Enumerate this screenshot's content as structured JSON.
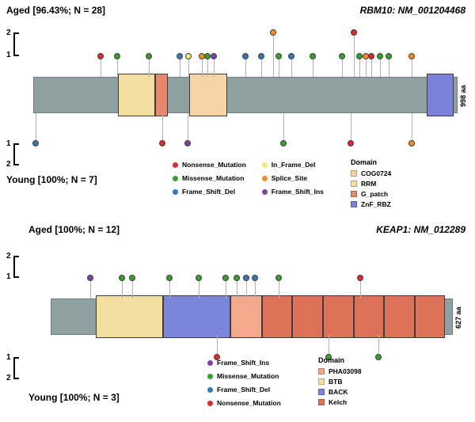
{
  "chart_data": [
    {
      "type": "lollipop",
      "gene_title": "RBM10: NM_001204468",
      "top_label": "Aged [96.43%; N = 28]",
      "bottom_label": "Young [100%; N = 7]",
      "protein_length_label": "998 aa",
      "axis_ticks_top": [
        "2",
        "1"
      ],
      "axis_ticks_bottom": [
        "1",
        "2"
      ],
      "bar_color": "#8FA0A0",
      "domain_colors": {
        "COG0724": "#F7D4A6",
        "RRM": "#F2DFA0",
        "G_patch": "#E8876B",
        "ZnF_RBZ": "#7B80D8"
      },
      "domains": [
        {
          "name": "RRM",
          "start": 0.2,
          "end": 0.287
        },
        {
          "name": "G_patch",
          "start": 0.287,
          "end": 0.317
        },
        {
          "name": "COG0724",
          "start": 0.368,
          "end": 0.458
        },
        {
          "name": "ZnF_RBZ",
          "start": 0.928,
          "end": 0.99
        }
      ],
      "mutation_colors": {
        "Nonsense_Mutation": "#DF2A2A",
        "Missense_Mutation": "#37A12E",
        "Frame_Shift_Del": "#3878B8",
        "In_Frame_Del": "#EFEF70",
        "Splice_Site": "#F58C22",
        "Frame_Shift_Ins": "#7A44A8"
      },
      "mutations_top": [
        {
          "pos": 0.159,
          "type": "Nonsense_Mutation",
          "count": 1
        },
        {
          "pos": 0.198,
          "type": "Missense_Mutation",
          "count": 1
        },
        {
          "pos": 0.272,
          "type": "Missense_Mutation",
          "count": 1
        },
        {
          "pos": 0.345,
          "type": "Frame_Shift_Del",
          "count": 1
        },
        {
          "pos": 0.366,
          "type": "In_Frame_Del",
          "count": 1
        },
        {
          "pos": 0.397,
          "type": "Splice_Site",
          "count": 1
        },
        {
          "pos": 0.41,
          "type": "Missense_Mutation",
          "count": 1
        },
        {
          "pos": 0.425,
          "type": "Frame_Shift_Ins",
          "count": 1
        },
        {
          "pos": 0.5,
          "type": "Frame_Shift_Del",
          "count": 1
        },
        {
          "pos": 0.537,
          "type": "Frame_Shift_Del",
          "count": 1
        },
        {
          "pos": 0.565,
          "type": "Splice_Site",
          "count": 2
        },
        {
          "pos": 0.578,
          "type": "Missense_Mutation",
          "count": 1
        },
        {
          "pos": 0.608,
          "type": "Frame_Shift_Del",
          "count": 1
        },
        {
          "pos": 0.659,
          "type": "Missense_Mutation",
          "count": 1
        },
        {
          "pos": 0.728,
          "type": "Missense_Mutation",
          "count": 1
        },
        {
          "pos": 0.756,
          "type": "Nonsense_Mutation",
          "count": 2
        },
        {
          "pos": 0.768,
          "type": "Missense_Mutation",
          "count": 1
        },
        {
          "pos": 0.784,
          "type": "Splice_Site",
          "count": 1
        },
        {
          "pos": 0.796,
          "type": "Nonsense_Mutation",
          "count": 1
        },
        {
          "pos": 0.817,
          "type": "Missense_Mutation",
          "count": 1
        },
        {
          "pos": 0.838,
          "type": "Missense_Mutation",
          "count": 1
        },
        {
          "pos": 0.892,
          "type": "Splice_Site",
          "count": 1
        }
      ],
      "mutations_bottom": [
        {
          "pos": 0.006,
          "type": "Frame_Shift_Del",
          "count": 1
        },
        {
          "pos": 0.304,
          "type": "Nonsense_Mutation",
          "count": 1
        },
        {
          "pos": 0.364,
          "type": "Frame_Shift_Ins",
          "count": 1
        },
        {
          "pos": 0.59,
          "type": "Missense_Mutation",
          "count": 1
        },
        {
          "pos": 0.748,
          "type": "Nonsense_Mutation",
          "count": 1
        },
        {
          "pos": 0.892,
          "type": "Splice_Site",
          "count": 1
        }
      ],
      "mutation_legend_columns": [
        [
          "Nonsense_Mutation",
          "Missense_Mutation",
          "Frame_Shift_Del"
        ],
        [
          "In_Frame_Del",
          "Splice_Site",
          "Frame_Shift_Ins"
        ]
      ],
      "domain_legend_title": "Domain",
      "domain_legend": [
        "COG0724",
        "RRM",
        "G_patch",
        "ZnF_RBZ"
      ]
    },
    {
      "type": "lollipop",
      "gene_title": "KEAP1: NM_012289",
      "top_label": "Aged [100%; N = 12]",
      "bottom_label": "Young [100%; N = 3]",
      "protein_length_label": "627 aa",
      "axis_ticks_top": [
        "2",
        "1"
      ],
      "axis_ticks_bottom": [
        "1",
        "2"
      ],
      "bar_color": "#8FA0A0",
      "domain_colors": {
        "PHA03098": "#F4A98C",
        "BTB": "#F2DFA0",
        "BACK": "#7B86DB",
        "Kelch": "#DC7358"
      },
      "domains": [
        {
          "name": "BTB",
          "start": 0.112,
          "end": 0.28
        },
        {
          "name": "BACK",
          "start": 0.28,
          "end": 0.446
        },
        {
          "name": "PHA03098",
          "start": 0.446,
          "end": 0.525
        },
        {
          "name": "Kelch",
          "start": 0.525,
          "end": 0.601
        },
        {
          "name": "Kelch",
          "start": 0.601,
          "end": 0.677
        },
        {
          "name": "Kelch",
          "start": 0.677,
          "end": 0.753
        },
        {
          "name": "Kelch",
          "start": 0.753,
          "end": 0.829
        },
        {
          "name": "Kelch",
          "start": 0.829,
          "end": 0.905
        },
        {
          "name": "Kelch",
          "start": 0.905,
          "end": 0.98
        }
      ],
      "mutation_colors": {
        "Frame_Shift_Ins": "#7A44A8",
        "Missense_Mutation": "#37A12E",
        "Frame_Shift_Del": "#3878B8",
        "Nonsense_Mutation": "#DF2A2A"
      },
      "mutations_top": [
        {
          "pos": 0.099,
          "type": "Frame_Shift_Ins",
          "count": 1
        },
        {
          "pos": 0.178,
          "type": "Missense_Mutation",
          "count": 1
        },
        {
          "pos": 0.203,
          "type": "Missense_Mutation",
          "count": 1
        },
        {
          "pos": 0.296,
          "type": "Missense_Mutation",
          "count": 1
        },
        {
          "pos": 0.369,
          "type": "Missense_Mutation",
          "count": 1
        },
        {
          "pos": 0.436,
          "type": "Missense_Mutation",
          "count": 1
        },
        {
          "pos": 0.463,
          "type": "Missense_Mutation",
          "count": 1
        },
        {
          "pos": 0.487,
          "type": "Frame_Shift_Del",
          "count": 1
        },
        {
          "pos": 0.507,
          "type": "Frame_Shift_Del",
          "count": 1
        },
        {
          "pos": 0.566,
          "type": "Missense_Mutation",
          "count": 1
        },
        {
          "pos": 0.77,
          "type": "Nonsense_Mutation",
          "count": 1
        }
      ],
      "mutations_bottom": [
        {
          "pos": 0.414,
          "type": "Nonsense_Mutation",
          "count": 1
        },
        {
          "pos": 0.69,
          "type": "Missense_Mutation",
          "count": 1
        },
        {
          "pos": 0.814,
          "type": "Missense_Mutation",
          "count": 1
        }
      ],
      "mutation_legend_columns": [
        [
          "Frame_Shift_Ins",
          "Missense_Mutation",
          "Frame_Shift_Del",
          "Nonsense_Mutation"
        ]
      ],
      "domain_legend_title": "Domain",
      "domain_legend": [
        "PHA03098",
        "BTB",
        "BACK",
        "Kelch"
      ]
    }
  ]
}
